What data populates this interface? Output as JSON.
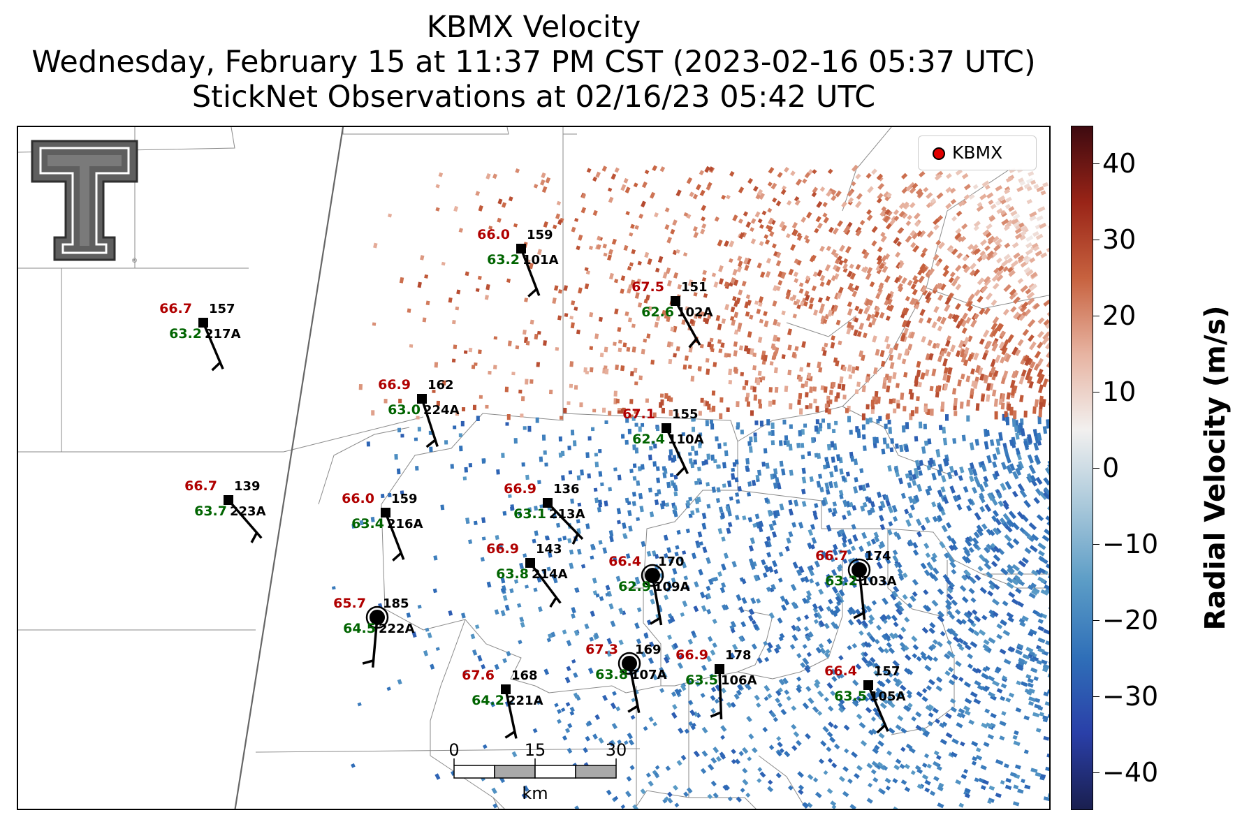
{
  "title": {
    "line1": "KBMX Velocity",
    "line2": "Wednesday, February 15 at 11:37 PM CST (2023-02-16 05:37 UTC)",
    "line3": "StickNet Observations at 02/16/23 05:42 UTC"
  },
  "legend": {
    "label": "KBMX"
  },
  "colorbar": {
    "title": "Radial Velocity (m/s)",
    "min": -45,
    "max": 45,
    "ticks": [
      "40",
      "30",
      "20",
      "10",
      "0",
      "−10",
      "−20",
      "−30",
      "−40"
    ],
    "tick_values": [
      40,
      30,
      20,
      10,
      0,
      -10,
      -20,
      -30,
      -40
    ],
    "colors": [
      "#1a1f4f",
      "#2a3fa8",
      "#2f6fb8",
      "#5b9cc6",
      "#a9c8da",
      "#f2f0ef",
      "#e7b3a1",
      "#c7623f",
      "#992417",
      "#3e0a10"
    ]
  },
  "scale_bar": {
    "labels": [
      "0",
      "15",
      "30"
    ],
    "unit": "km"
  },
  "logo": {
    "name": "texas-tech-double-t-logo"
  },
  "stations": [
    {
      "id": "101A",
      "temp": "66.0",
      "dew": "63.2",
      "dir": "159"
    },
    {
      "id": "102A",
      "temp": "67.5",
      "dew": "62.6",
      "dir": "151"
    },
    {
      "id": "217A",
      "temp": "66.7",
      "dew": "63.2",
      "dir": "157"
    },
    {
      "id": "224A",
      "temp": "66.9",
      "dew": "63.0",
      "dir": "162"
    },
    {
      "id": "110A",
      "temp": "67.1",
      "dew": "62.4",
      "dir": "155"
    },
    {
      "id": "223A",
      "temp": "66.7",
      "dew": "63.7",
      "dir": "139"
    },
    {
      "id": "216A",
      "temp": "66.0",
      "dew": "63.4",
      "dir": "159"
    },
    {
      "id": "213A",
      "temp": "66.9",
      "dew": "63.1",
      "dir": "136"
    },
    {
      "id": "214A",
      "temp": "66.9",
      "dew": "63.8",
      "dir": "143"
    },
    {
      "id": "109A",
      "temp": "66.4",
      "dew": "62.9",
      "dir": "170"
    },
    {
      "id": "103A",
      "temp": "66.7",
      "dew": "63.2",
      "dir": "174"
    },
    {
      "id": "222A",
      "temp": "65.7",
      "dew": "64.5",
      "dir": "185"
    },
    {
      "id": "107A",
      "temp": "67.3",
      "dew": "63.8",
      "dir": "169"
    },
    {
      "id": "106A",
      "temp": "66.9",
      "dew": "63.5",
      "dir": "178"
    },
    {
      "id": "105A",
      "temp": "66.4",
      "dew": "63.5",
      "dir": "157"
    },
    {
      "id": "221A",
      "temp": "67.6",
      "dew": "64.2",
      "dir": "168"
    }
  ]
}
